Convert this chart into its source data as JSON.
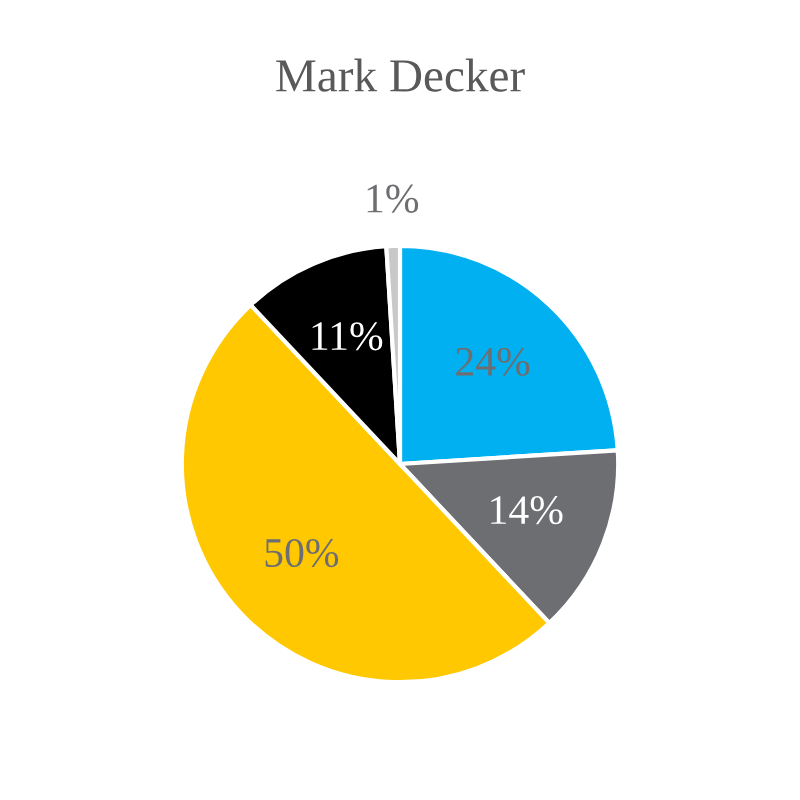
{
  "chart_data": {
    "type": "pie",
    "title": "Mark Decker",
    "categories": [
      null,
      null,
      null,
      null,
      null
    ],
    "values": [
      24,
      14,
      50,
      11,
      1
    ],
    "colors": [
      "#00b0f0",
      "#6d6e71",
      "#ffc800",
      "#000000",
      "#c8c8c8"
    ],
    "value_labels": [
      "24%",
      "14%",
      "50%",
      "11%",
      "1%"
    ],
    "legend": false
  }
}
